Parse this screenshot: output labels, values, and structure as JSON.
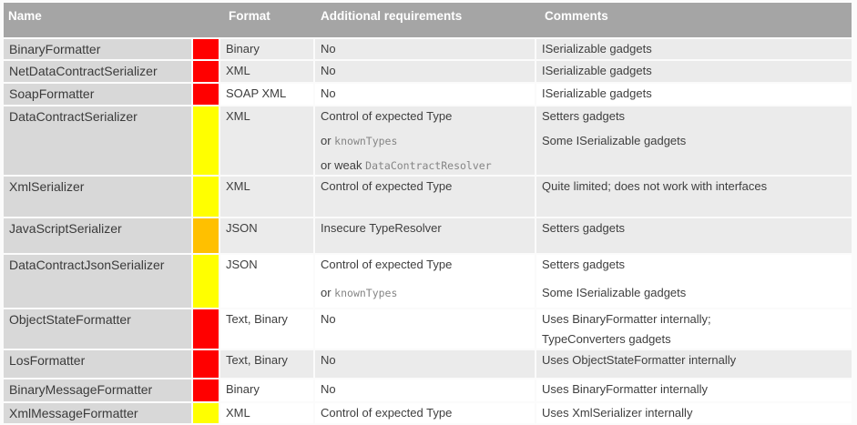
{
  "colors": {
    "red": "#ff0000",
    "yellow": "#ffff00",
    "orange": "#ffc000",
    "header_bg": "#a5a5a5",
    "name_column_bg": "#d8d8d8",
    "band_gray": "#ebebeb",
    "band_white": "#ffffff"
  },
  "header": {
    "name": "Name",
    "format": "Format",
    "requirements": "Additional requirements",
    "comments": "Comments"
  },
  "rows": [
    {
      "name": "BinaryFormatter",
      "risk": "red",
      "format": "Binary",
      "band": "gray",
      "requirements": [
        [
          {
            "text": "No"
          }
        ]
      ],
      "comments": [
        [
          {
            "text": "ISerializable gadgets"
          }
        ]
      ]
    },
    {
      "name": "NetDataContractSerializer",
      "risk": "red",
      "format": "XML",
      "band": "gray",
      "requirements": [
        [
          {
            "text": "No"
          }
        ]
      ],
      "comments": [
        [
          {
            "text": "ISerializable gadgets"
          }
        ]
      ]
    },
    {
      "name": "SoapFormatter",
      "risk": "red",
      "format": "SOAP XML",
      "band": "white",
      "requirements": [
        [
          {
            "text": "No"
          }
        ]
      ],
      "comments": [
        [
          {
            "text": "ISerializable gadgets"
          }
        ]
      ]
    },
    {
      "name": "DataContractSerializer",
      "risk": "yellow",
      "format": "XML",
      "band": "gray",
      "requirements": [
        [
          {
            "text": "Control of expected Type"
          }
        ],
        [
          {
            "text": "or "
          },
          {
            "text": "knownTypes",
            "mono": true
          }
        ],
        [
          {
            "text": "or weak "
          },
          {
            "text": "DataContractResolver",
            "mono": true
          }
        ]
      ],
      "comments": [
        [
          {
            "text": "Setters gadgets"
          }
        ],
        [
          {
            "text": "Some ISerializable gadgets"
          }
        ]
      ]
    },
    {
      "name": "XmlSerializer",
      "risk": "yellow",
      "format": "XML",
      "band": "gray",
      "requirements": [
        [
          {
            "text": "Control of expected Type"
          }
        ]
      ],
      "comments": [
        [
          {
            "text": "Quite limited; does not work with interfaces"
          }
        ]
      ]
    },
    {
      "name": "JavaScriptSerializer",
      "risk": "orange",
      "format": "JSON",
      "band": "gray",
      "requirements": [
        [
          {
            "text": "Insecure TypeResolver"
          }
        ]
      ],
      "comments": [
        [
          {
            "text": "Setters gadgets"
          }
        ]
      ]
    },
    {
      "name": "DataContractJsonSerializer",
      "risk": "yellow",
      "format": "JSON",
      "band": "white",
      "requirements": [
        [
          {
            "text": "Control of expected Type"
          }
        ],
        [
          {
            "text": "or "
          },
          {
            "text": "knownTypes",
            "mono": true
          }
        ]
      ],
      "comments": [
        [
          {
            "text": "Setters gadgets"
          }
        ],
        [
          {
            "text": "Some ISerializable gadgets"
          }
        ]
      ]
    },
    {
      "name": "ObjectStateFormatter",
      "risk": "red",
      "format": "Text, Binary",
      "band": "white",
      "requirements": [
        [
          {
            "text": "No"
          }
        ]
      ],
      "comments": [
        [
          {
            "text": "Uses BinaryFormatter internally;"
          }
        ],
        [
          {
            "text": "TypeConverters gadgets"
          }
        ]
      ]
    },
    {
      "name": "LosFormatter",
      "risk": "red",
      "format": "Text, Binary",
      "band": "gray",
      "requirements": [
        [
          {
            "text": "No"
          }
        ]
      ],
      "comments": [
        [
          {
            "text": "Uses ObjectStateFormatter internally"
          }
        ]
      ]
    },
    {
      "name": "BinaryMessageFormatter",
      "risk": "red",
      "format": "Binary",
      "band": "white",
      "requirements": [
        [
          {
            "text": "No"
          }
        ]
      ],
      "comments": [
        [
          {
            "text": "Uses BinaryFormatter internally"
          }
        ]
      ]
    },
    {
      "name": "XmlMessageFormatter",
      "risk": "yellow",
      "format": "XML",
      "band": "white",
      "requirements": [
        [
          {
            "text": "Control of expected Type"
          }
        ]
      ],
      "comments": [
        [
          {
            "text": "Uses XmlSerializer internally"
          }
        ]
      ]
    }
  ]
}
